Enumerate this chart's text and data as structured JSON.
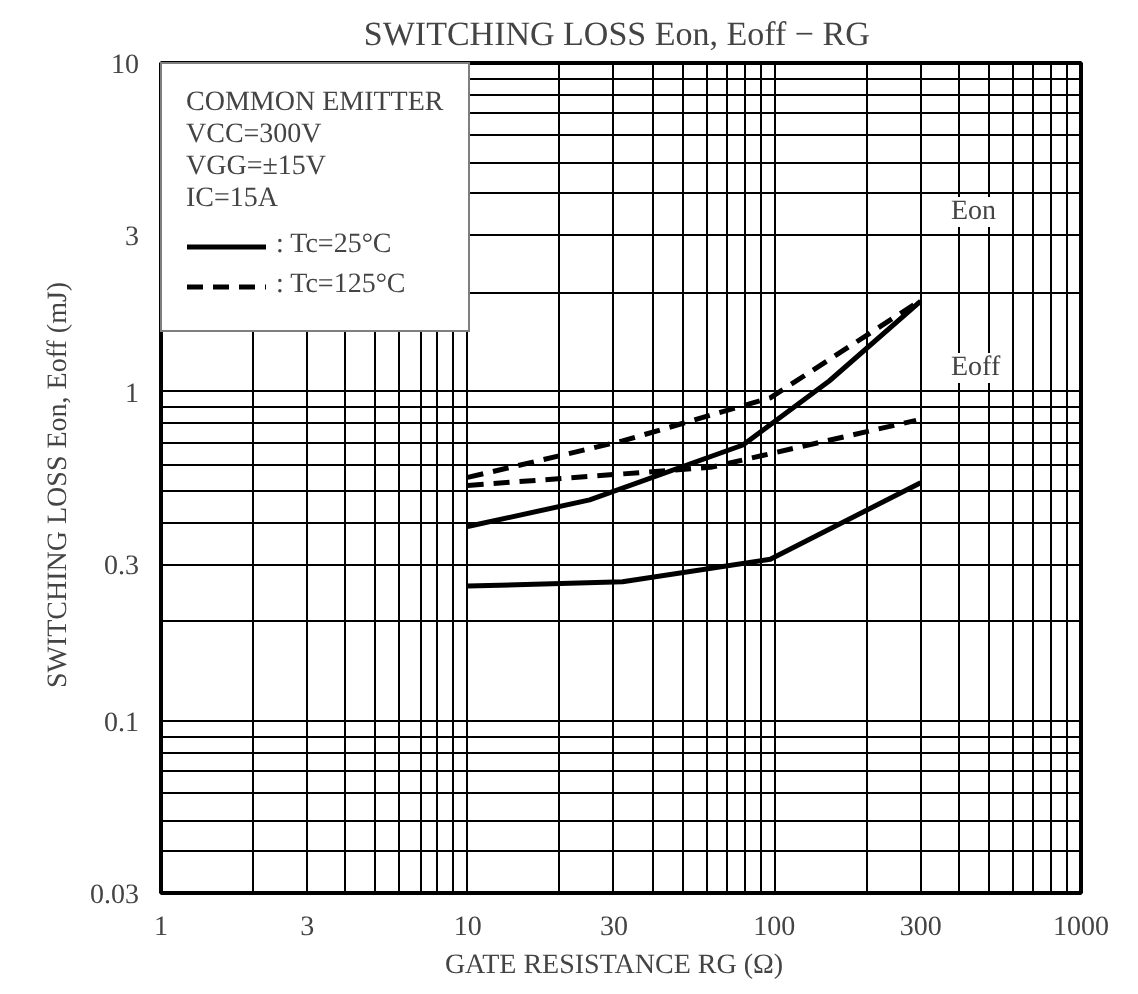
{
  "chart_data": {
    "type": "line",
    "title": "SWITCHING LOSS  Eon, Eoff − RG",
    "xlabel": "GATE RESISTANCE  RG  (Ω)",
    "ylabel": "SWITCHING LOSS  Eon, Eoff  (mJ)",
    "log": "xy",
    "xlim": [
      1,
      1000
    ],
    "ylim": [
      0.03,
      10
    ],
    "xticks": [
      1,
      3,
      10,
      30,
      100,
      300,
      1000
    ],
    "yticks": [
      0.03,
      0.1,
      0.3,
      1,
      3,
      10
    ],
    "grid": true,
    "legend": "top left",
    "marker": "none",
    "annotations": [
      "COMMON EMITTER",
      "VCC=300V",
      "VGG=±15V",
      "IC=15A",
      "Eon",
      "Eoff"
    ],
    "series": [
      {
        "name": ": Tc=25°C",
        "color": "#000000",
        "line_style": "solid",
        "x": [
          10,
          25,
          79,
          151,
          300
        ],
        "values": [
          0.39,
          0.47,
          0.69,
          1.08,
          1.89
        ]
      },
      {
        "name": ": Tc=125°C",
        "color": "#000000",
        "line_style": "dashed",
        "x": [
          10,
          32,
          97,
          300
        ],
        "values": [
          0.55,
          0.71,
          0.96,
          1.9
        ]
      },
      {
        "color": "#000000",
        "line_style": "dashed",
        "x": [
          10,
          62,
          290
        ],
        "values": [
          0.52,
          0.59,
          0.82
        ]
      },
      {
        "color": "#000000",
        "line_style": "solid",
        "x": [
          10,
          32,
          97,
          300
        ],
        "values": [
          0.257,
          0.265,
          0.31,
          0.53
        ]
      }
    ]
  }
}
